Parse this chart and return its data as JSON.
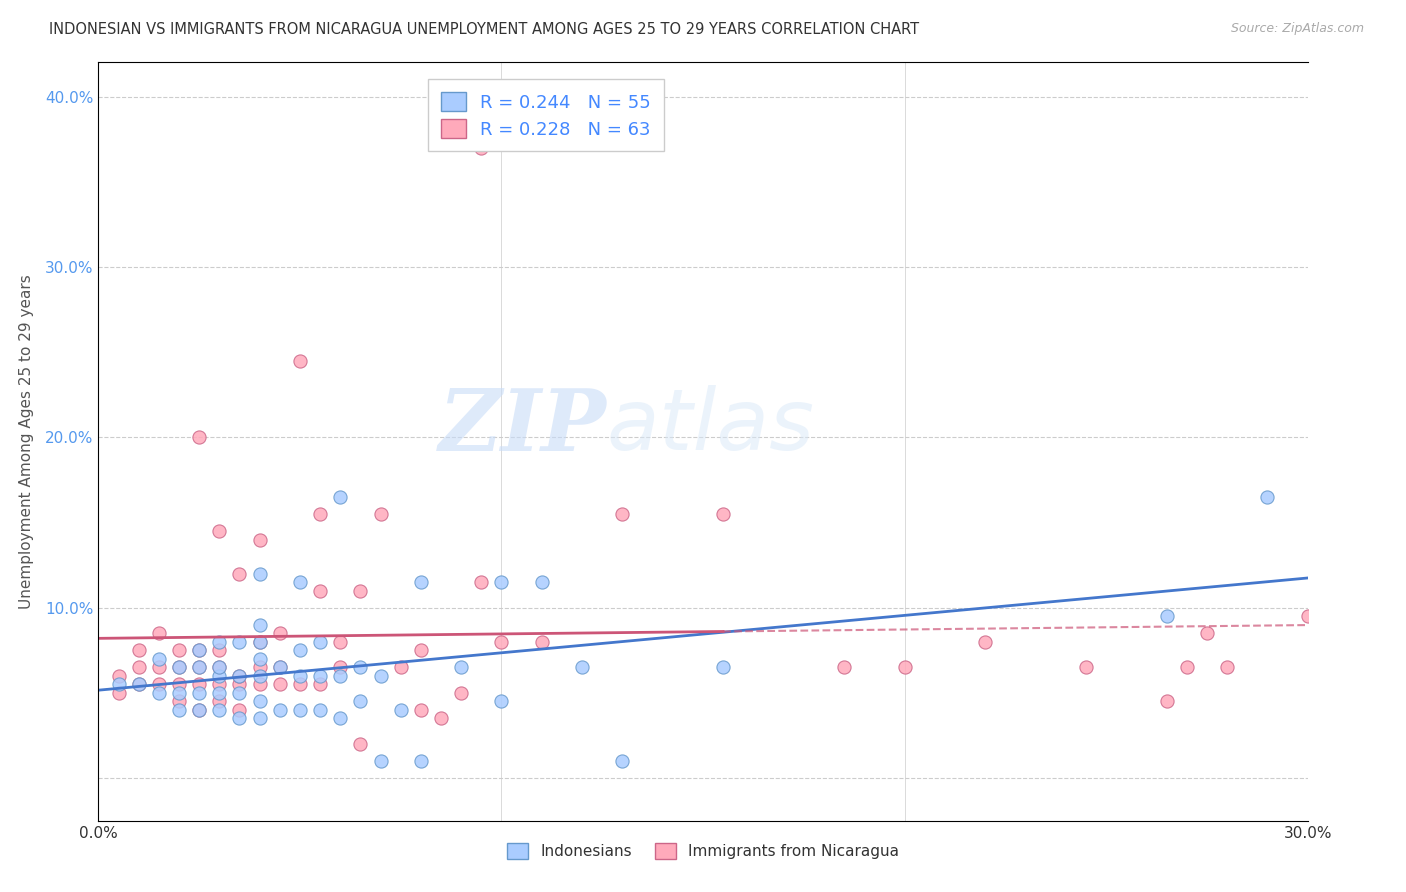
{
  "title": "INDONESIAN VS IMMIGRANTS FROM NICARAGUA UNEMPLOYMENT AMONG AGES 25 TO 29 YEARS CORRELATION CHART",
  "source": "Source: ZipAtlas.com",
  "ylabel": "Unemployment Among Ages 25 to 29 years",
  "xlim": [
    0.0,
    0.3
  ],
  "ylim": [
    -0.025,
    0.42
  ],
  "yticks": [
    0.0,
    0.1,
    0.2,
    0.3,
    0.4
  ],
  "ytick_labels": [
    "",
    "10.0%",
    "20.0%",
    "30.0%",
    "40.0%"
  ],
  "xticks": [
    0.0,
    0.05,
    0.1,
    0.15,
    0.2,
    0.25,
    0.3
  ],
  "xtick_labels": [
    "0.0%",
    "",
    "",
    "",
    "",
    "",
    "30.0%"
  ],
  "legend_r1": "R = 0.244",
  "legend_n1": "N = 55",
  "legend_r2": "R = 0.228",
  "legend_n2": "N = 63",
  "color_indonesian_face": "#aaccff",
  "color_indonesian_edge": "#6699cc",
  "color_nicaragua_face": "#ffaabb",
  "color_nicaragua_edge": "#cc6688",
  "color_line_indonesian": "#4477cc",
  "color_line_nicaragua": "#cc5577",
  "color_ytick": "#5599ee",
  "color_grid": "#cccccc",
  "watermark_zip": "ZIP",
  "watermark_atlas": "atlas",
  "indonesian_x": [
    0.005,
    0.01,
    0.015,
    0.015,
    0.02,
    0.02,
    0.02,
    0.025,
    0.025,
    0.025,
    0.025,
    0.03,
    0.03,
    0.03,
    0.03,
    0.03,
    0.035,
    0.035,
    0.035,
    0.035,
    0.04,
    0.04,
    0.04,
    0.04,
    0.04,
    0.04,
    0.04,
    0.045,
    0.045,
    0.05,
    0.05,
    0.05,
    0.05,
    0.055,
    0.055,
    0.055,
    0.06,
    0.06,
    0.06,
    0.065,
    0.065,
    0.07,
    0.07,
    0.075,
    0.08,
    0.08,
    0.09,
    0.1,
    0.1,
    0.11,
    0.12,
    0.13,
    0.155,
    0.265,
    0.29
  ],
  "indonesian_y": [
    0.055,
    0.055,
    0.07,
    0.05,
    0.04,
    0.05,
    0.065,
    0.04,
    0.05,
    0.065,
    0.075,
    0.04,
    0.05,
    0.06,
    0.065,
    0.08,
    0.035,
    0.05,
    0.06,
    0.08,
    0.035,
    0.045,
    0.06,
    0.07,
    0.08,
    0.09,
    0.12,
    0.04,
    0.065,
    0.04,
    0.06,
    0.075,
    0.115,
    0.04,
    0.06,
    0.08,
    0.035,
    0.06,
    0.165,
    0.045,
    0.065,
    0.01,
    0.06,
    0.04,
    0.01,
    0.115,
    0.065,
    0.045,
    0.115,
    0.115,
    0.065,
    0.01,
    0.065,
    0.095,
    0.165
  ],
  "nicaragua_x": [
    0.005,
    0.005,
    0.01,
    0.01,
    0.01,
    0.015,
    0.015,
    0.015,
    0.02,
    0.02,
    0.02,
    0.02,
    0.025,
    0.025,
    0.025,
    0.025,
    0.025,
    0.03,
    0.03,
    0.03,
    0.03,
    0.03,
    0.035,
    0.035,
    0.035,
    0.035,
    0.04,
    0.04,
    0.04,
    0.04,
    0.045,
    0.045,
    0.045,
    0.05,
    0.05,
    0.055,
    0.055,
    0.055,
    0.06,
    0.06,
    0.065,
    0.065,
    0.07,
    0.075,
    0.08,
    0.08,
    0.085,
    0.09,
    0.095,
    0.095,
    0.1,
    0.11,
    0.13,
    0.155,
    0.185,
    0.2,
    0.22,
    0.245,
    0.265,
    0.27,
    0.275,
    0.28,
    0.3
  ],
  "nicaragua_y": [
    0.05,
    0.06,
    0.055,
    0.065,
    0.075,
    0.055,
    0.065,
    0.085,
    0.045,
    0.055,
    0.065,
    0.075,
    0.04,
    0.055,
    0.065,
    0.075,
    0.2,
    0.045,
    0.055,
    0.065,
    0.075,
    0.145,
    0.04,
    0.055,
    0.06,
    0.12,
    0.055,
    0.065,
    0.08,
    0.14,
    0.055,
    0.065,
    0.085,
    0.055,
    0.245,
    0.055,
    0.11,
    0.155,
    0.065,
    0.08,
    0.02,
    0.11,
    0.155,
    0.065,
    0.04,
    0.075,
    0.035,
    0.05,
    0.115,
    0.37,
    0.08,
    0.08,
    0.155,
    0.155,
    0.065,
    0.065,
    0.08,
    0.065,
    0.045,
    0.065,
    0.085,
    0.065,
    0.095
  ]
}
